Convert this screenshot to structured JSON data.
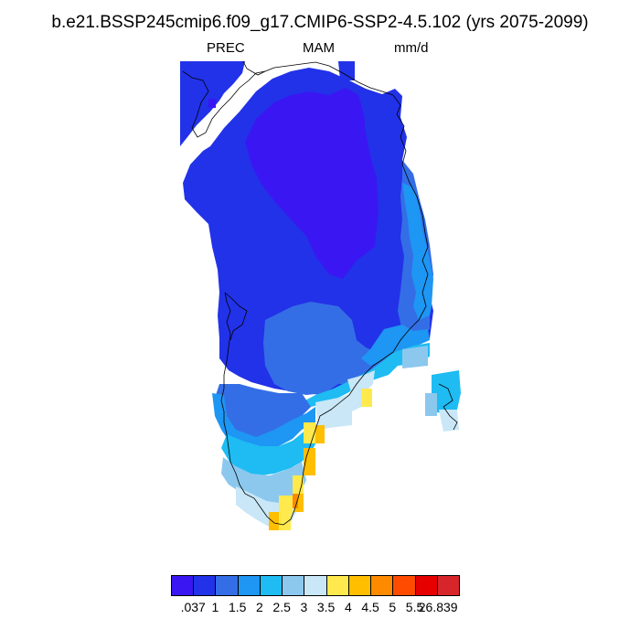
{
  "title": "b.e21.BSSP245cmip6.f09_g17.CMIP6-SSP2-4.5.102 (yrs 2075-2099)",
  "variable": "PREC",
  "season": "MAM",
  "units": "mm/d",
  "colorbar": {
    "colors": [
      "#3a17f2",
      "#2232e8",
      "#346ee6",
      "#1e96f3",
      "#1ebcf2",
      "#8cc8ee",
      "#c9e7f7",
      "#ffe94d",
      "#ffbe00",
      "#fe8a00",
      "#ff4b00",
      "#e60000",
      "#d7262b"
    ],
    "labels": [
      ".037",
      "1",
      "1.5",
      "2",
      "2.5",
      "3",
      "3.5",
      "4",
      "4.5",
      "5",
      "5.5",
      "26.839"
    ]
  }
}
